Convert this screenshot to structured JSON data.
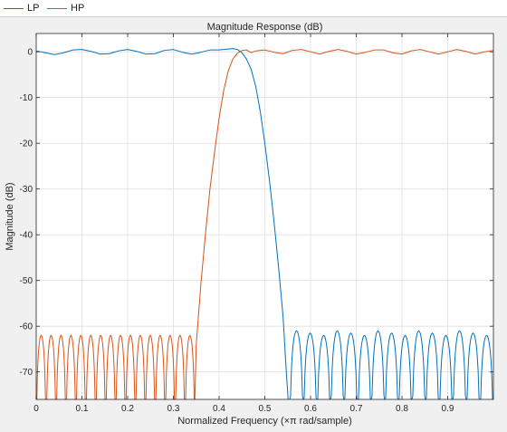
{
  "legend": {
    "items": [
      {
        "label": "LP",
        "color": "#0072BD"
      },
      {
        "label": "HP",
        "color": "#D95319"
      }
    ]
  },
  "chart_data": {
    "type": "line",
    "title": "Magnitude Response (dB)",
    "xlabel": "Normalized Frequency (×π rad/sample)",
    "ylabel": "Magnitude (dB)",
    "xlim": [
      0,
      1
    ],
    "ylim": [
      -76,
      4
    ],
    "grid": true,
    "legend_position": "top-left",
    "x_ticks": [
      0,
      0.1,
      0.2,
      0.3,
      0.4,
      0.5,
      0.6,
      0.7,
      0.8,
      0.9
    ],
    "x_tick_labels": [
      "0",
      "0.1",
      "0.2",
      "0.3",
      "0.4",
      "0.5",
      "0.6",
      "0.7",
      "0.8",
      "0.9"
    ],
    "y_ticks": [
      0,
      -10,
      -20,
      -30,
      -40,
      -50,
      -60,
      -70
    ],
    "y_tick_labels": [
      "0",
      "-10",
      "-20",
      "-30",
      "-40",
      "-50",
      "-60",
      "-70"
    ],
    "series": [
      {
        "name": "LP",
        "color": "#0072BD",
        "x": [
          0,
          0.02,
          0.04,
          0.06,
          0.08,
          0.1,
          0.12,
          0.14,
          0.16,
          0.18,
          0.2,
          0.22,
          0.24,
          0.26,
          0.28,
          0.3,
          0.32,
          0.34,
          0.36,
          0.38,
          0.4,
          0.42,
          0.43,
          0.44,
          0.45,
          0.46,
          0.47,
          0.48,
          0.49,
          0.5,
          0.51,
          0.52,
          0.53,
          0.54,
          0.547,
          0.551
        ],
        "y": [
          0.2,
          -0.2,
          -0.6,
          -0.2,
          0.4,
          0.5,
          0.1,
          -0.5,
          -0.4,
          0.2,
          0.5,
          0.1,
          -0.5,
          -0.4,
          0.3,
          0.5,
          -0.1,
          -0.5,
          -0.1,
          0.4,
          0.4,
          0.6,
          0.7,
          0.5,
          -0.2,
          -1.6,
          -3.8,
          -7.5,
          -13,
          -20,
          -28,
          -37,
          -47,
          -58,
          -70,
          -76
        ],
        "stopband": {
          "start": 0.5545,
          "end": 1.0,
          "lobe_width": 0.0297,
          "floor": -76,
          "peaks": [
            -61,
            -61.5,
            -62
          ]
        }
      },
      {
        "name": "HP",
        "color": "#D95319",
        "x": [
          0.347,
          0.35,
          0.36,
          0.37,
          0.38,
          0.39,
          0.4,
          0.41,
          0.42,
          0.43,
          0.44,
          0.45,
          0.46,
          0.47,
          0.48,
          0.5,
          0.52,
          0.54,
          0.56,
          0.58,
          0.6,
          0.62,
          0.64,
          0.66,
          0.68,
          0.7,
          0.72,
          0.74,
          0.76,
          0.78,
          0.8,
          0.82,
          0.84,
          0.86,
          0.88,
          0.9,
          0.92,
          0.94,
          0.96,
          0.98,
          1.0
        ],
        "y": [
          -76,
          -64,
          -51,
          -40,
          -30,
          -22,
          -14.5,
          -8.5,
          -4.2,
          -1.6,
          -0.3,
          0.3,
          0.4,
          -0.2,
          0.2,
          0.4,
          -0.1,
          -0.4,
          0.3,
          0.5,
          0.0,
          -0.5,
          0.1,
          0.5,
          0.1,
          -0.5,
          -0.1,
          0.4,
          0.4,
          -0.2,
          -0.5,
          0.2,
          0.5,
          0.0,
          -0.5,
          0.0,
          0.5,
          0.1,
          -0.5,
          0.0,
          0.3
        ],
        "stopband": {
          "start": 0.0,
          "end": 0.347,
          "lobe_width": 0.02169,
          "floor": -76,
          "peaks": [
            -62,
            -62,
            -62
          ]
        }
      }
    ]
  }
}
